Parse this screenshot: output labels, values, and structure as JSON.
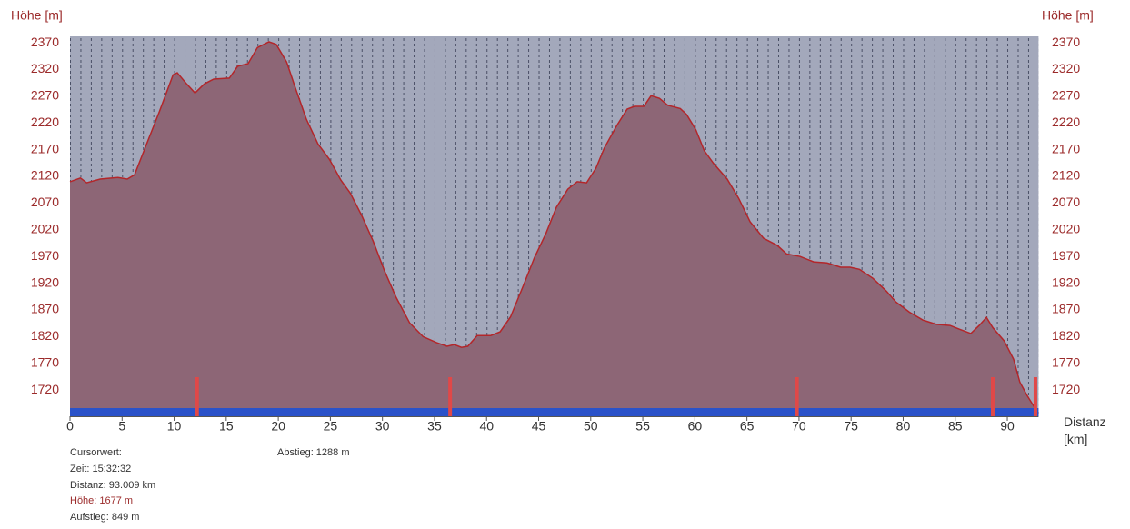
{
  "chart_data": {
    "type": "area",
    "y_label": "Höhe [m]",
    "y2_label": "Höhe [m]",
    "x_label": "Distanz [km]",
    "xlim": [
      0,
      93
    ],
    "ylim": [
      1671,
      2382
    ],
    "xticks": [
      0,
      5,
      10,
      15,
      20,
      25,
      30,
      35,
      40,
      45,
      50,
      55,
      60,
      65,
      70,
      75,
      80,
      85,
      90
    ],
    "yticks": [
      1720,
      1770,
      1820,
      1870,
      1920,
      1970,
      2020,
      2070,
      2120,
      2170,
      2220,
      2270,
      2320,
      2370
    ],
    "line_color": "#b3262a",
    "fill_color": "#8d6676",
    "background": "#a3a8bb",
    "marker_color": "#e04848",
    "bar_color": "#2a52c9",
    "x": [
      0,
      1.0,
      1.6,
      2.9,
      4.6,
      5.5,
      6.2,
      7.2,
      8.6,
      9.9,
      10.3,
      11.2,
      12.0,
      12.9,
      13.8,
      15.3,
      16.1,
      17.1,
      18.0,
      19.1,
      19.8,
      20.8,
      21.6,
      22.7,
      23.8,
      24.9,
      26.0,
      26.9,
      28.0,
      29.1,
      30.2,
      31.3,
      32.6,
      33.9,
      35.2,
      36.2,
      36.9,
      37.6,
      38.2,
      39.1,
      40.4,
      41.3,
      42.3,
      43.5,
      44.6,
      45.7,
      46.7,
      47.8,
      48.7,
      49.6,
      50.5,
      51.3,
      52.5,
      53.5,
      54.2,
      55.1,
      55.8,
      56.6,
      57.4,
      58.6,
      59.2,
      60.1,
      60.9,
      61.8,
      63.1,
      64.2,
      65.3,
      66.6,
      67.9,
      68.8,
      70.1,
      71.4,
      72.7,
      74.0,
      74.9,
      75.8,
      77.1,
      78.4,
      79.3,
      80.6,
      81.9,
      83.2,
      84.5,
      85.4,
      86.5,
      87.3,
      88.0,
      88.6,
      89.7,
      90.6,
      91.2,
      91.9,
      92.6,
      93.0
    ],
    "values": [
      2110,
      2117,
      2108,
      2115,
      2118,
      2115,
      2123,
      2173,
      2242,
      2310,
      2314,
      2293,
      2276,
      2293,
      2302,
      2304,
      2326,
      2331,
      2361,
      2372,
      2367,
      2334,
      2288,
      2227,
      2181,
      2152,
      2113,
      2089,
      2047,
      1999,
      1943,
      1894,
      1846,
      1820,
      1809,
      1802,
      1805,
      1800,
      1802,
      1822,
      1822,
      1829,
      1857,
      1914,
      1968,
      2013,
      2062,
      2096,
      2110,
      2108,
      2135,
      2173,
      2215,
      2246,
      2251,
      2251,
      2271,
      2266,
      2253,
      2247,
      2236,
      2207,
      2168,
      2144,
      2115,
      2079,
      2035,
      2004,
      1991,
      1975,
      1970,
      1960,
      1958,
      1950,
      1950,
      1946,
      1929,
      1905,
      1885,
      1866,
      1851,
      1843,
      1841,
      1834,
      1826,
      1841,
      1856,
      1837,
      1812,
      1778,
      1735,
      1710,
      1688,
      1677
    ],
    "markers": [
      12.2,
      36.5,
      69.8,
      88.6,
      92.7
    ]
  },
  "info": {
    "cursor": "Cursorwert:",
    "time": "Zeit: 15:32:32",
    "distance": "Distanz: 93.009 km",
    "height": "Höhe: 1677 m",
    "ascent": "Aufstieg: 849 m",
    "descent": "Abstieg: 1288 m"
  }
}
